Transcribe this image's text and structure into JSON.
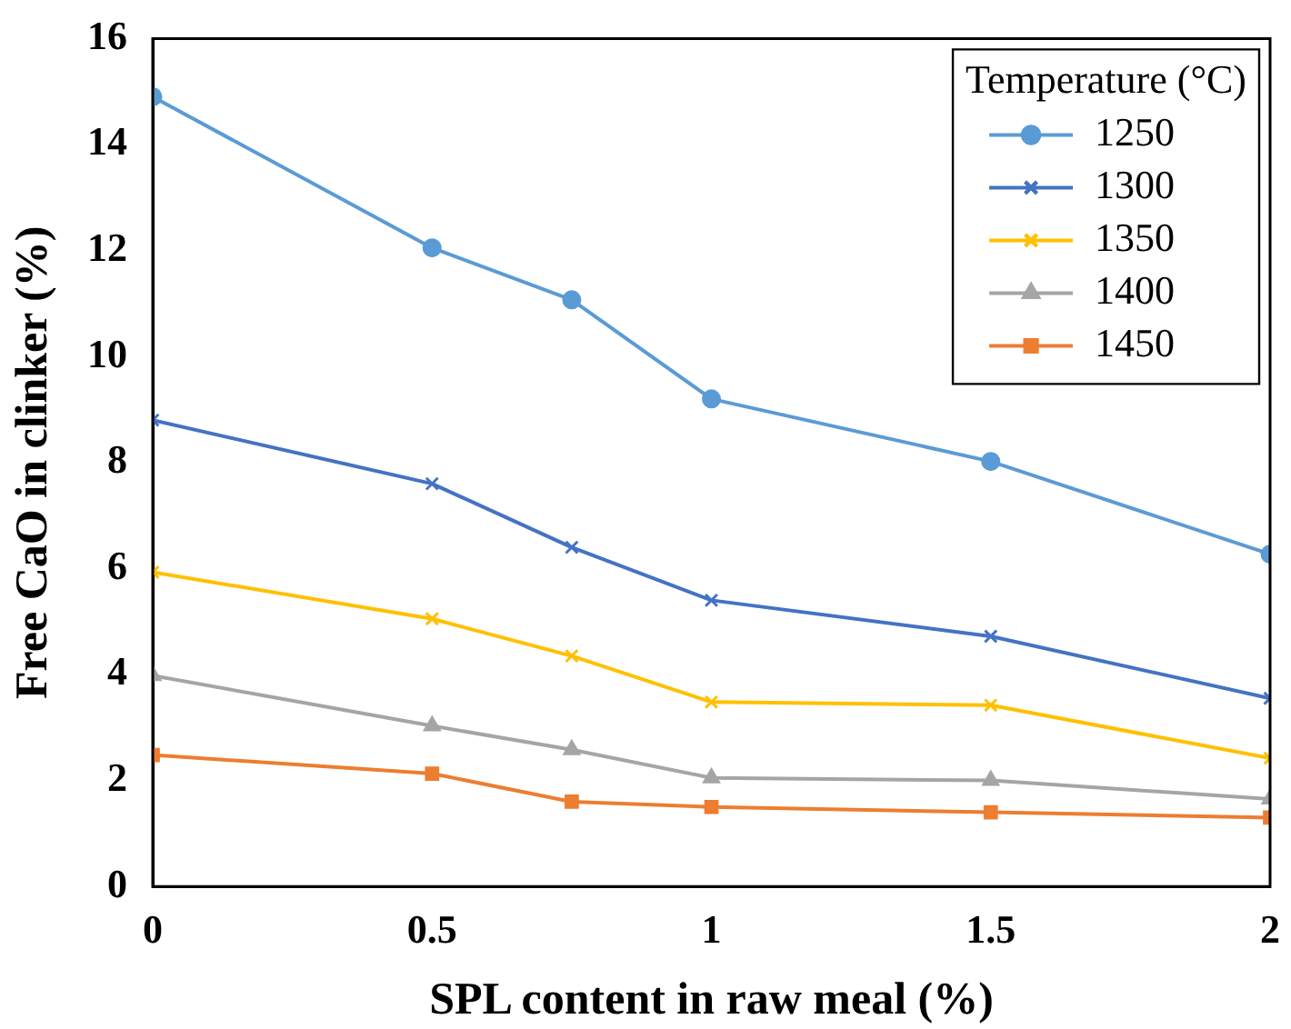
{
  "chart_data": {
    "type": "line",
    "xlabel": "SPL content in raw meal (%)",
    "ylabel": "Free CaO in clinker (%)",
    "legend_title": "Temperature (°C)",
    "legend": "top right",
    "grid": false,
    "x": [
      0,
      0.5,
      0.75,
      1,
      1.5,
      2
    ],
    "xlim": [
      0,
      2
    ],
    "xticks": [
      0,
      0.5,
      1,
      1.5,
      2
    ],
    "ylim": [
      0,
      16
    ],
    "yticks": [
      0,
      2,
      4,
      6,
      8,
      10,
      12,
      14,
      16
    ],
    "series": [
      {
        "name": "1250",
        "color": "#5b9bd5",
        "marker": "circle",
        "values": [
          14.9,
          12.05,
          11.07,
          9.2,
          8.02,
          6.27
        ]
      },
      {
        "name": "1300",
        "color": "#4472c4",
        "marker": "cross",
        "values": [
          8.8,
          7.6,
          6.4,
          5.4,
          4.72,
          3.55
        ]
      },
      {
        "name": "1350",
        "color": "#ffc000",
        "marker": "cross",
        "values": [
          5.93,
          5.05,
          4.35,
          3.48,
          3.42,
          2.42
        ]
      },
      {
        "name": "1400",
        "color": "#a5a5a5",
        "marker": "triangle",
        "values": [
          3.98,
          3.03,
          2.58,
          2.05,
          2.0,
          1.65
        ]
      },
      {
        "name": "1450",
        "color": "#ed7d31",
        "marker": "square",
        "values": [
          2.48,
          2.13,
          1.6,
          1.5,
          1.4,
          1.3
        ]
      }
    ]
  }
}
